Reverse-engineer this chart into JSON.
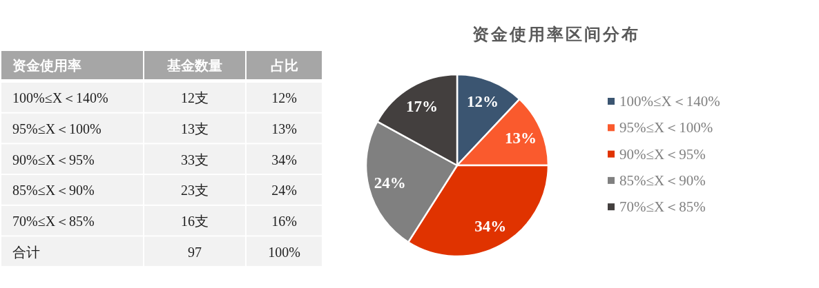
{
  "chart_data": [
    {
      "type": "other",
      "ylabel": "资金使用率",
      "categories": [
        "100%≤X＜140%",
        "95%≤X＜100%",
        "90%≤X＜95%",
        "85%≤X＜90%",
        "70%≤X＜85%",
        "合计"
      ],
      "series": [
        {
          "name": "基金数量",
          "values": [
            12,
            13,
            33,
            23,
            16,
            97
          ],
          "value_labels": [
            "12支",
            "13支",
            "33支",
            "23支",
            "16支",
            "97"
          ]
        },
        {
          "name": "占比",
          "values": [
            12,
            13,
            34,
            24,
            16,
            100
          ],
          "value_labels": [
            "12%",
            "13%",
            "34%",
            "24%",
            "16%",
            "100%"
          ]
        }
      ]
    },
    {
      "type": "pie",
      "title": "资金使用率区间分布",
      "categories": [
        "100%≤X＜140%",
        "95%≤X＜100%",
        "90%≤X＜95%",
        "85%≤X＜90%",
        "70%≤X＜85%"
      ],
      "values": [
        12,
        13,
        34,
        24,
        17
      ],
      "colors": [
        "#3b5571",
        "#fa5a2d",
        "#e03300",
        "#808080",
        "#433f3e"
      ],
      "value_labels": [
        "12%",
        "13%",
        "34%",
        "24%",
        "17%"
      ],
      "legend": "right"
    }
  ]
}
